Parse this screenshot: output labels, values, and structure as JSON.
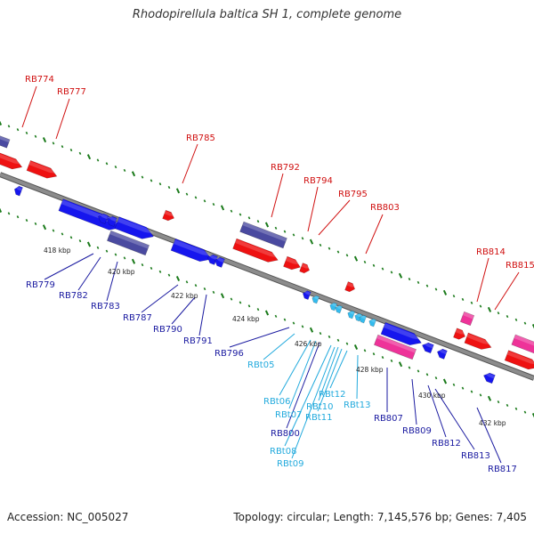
{
  "title": "Rhodopirellula baltica SH 1, complete genome",
  "footer": {
    "accession": "Accession: NC_005027",
    "topology": "Topology: circular; Length: 7,145,576 bp; Genes: 7,405"
  },
  "colors": {
    "backbone": "#8c8c8c",
    "top_label": "#d01010",
    "bottom_label": "#1a1aa0",
    "rna_label": "#22aadd",
    "gene_red": "#ee1111",
    "gene_blue": "#1616ee",
    "gene_navy": "#4a4aa0",
    "gene_pink": "#ee3399",
    "gene_cyan": "#33bbee",
    "tick_green": "#1a7a1a"
  },
  "kbp_labels": [
    "418 kbp",
    "420 kbp",
    "422 kbp",
    "424 kbp",
    "426 kbp",
    "428 kbp",
    "430 kbp",
    "432 kbp"
  ],
  "top_genes": [
    "RB774",
    "RB777",
    "RB785",
    "RB792",
    "RB794",
    "RB795",
    "RB803",
    "RB814",
    "RB815"
  ],
  "bottom_genes": [
    "RB779",
    "RB782",
    "RB783",
    "RB787",
    "RB790",
    "RB791",
    "RB796",
    "RB807",
    "RB809",
    "RB812",
    "RB813",
    "RB817",
    "RB800"
  ],
  "rna_genes": [
    "RBt05",
    "RBt06",
    "RBt07",
    "RBt08",
    "RBt09",
    "RBt10",
    "RBt11",
    "RBt12",
    "RBt13"
  ]
}
